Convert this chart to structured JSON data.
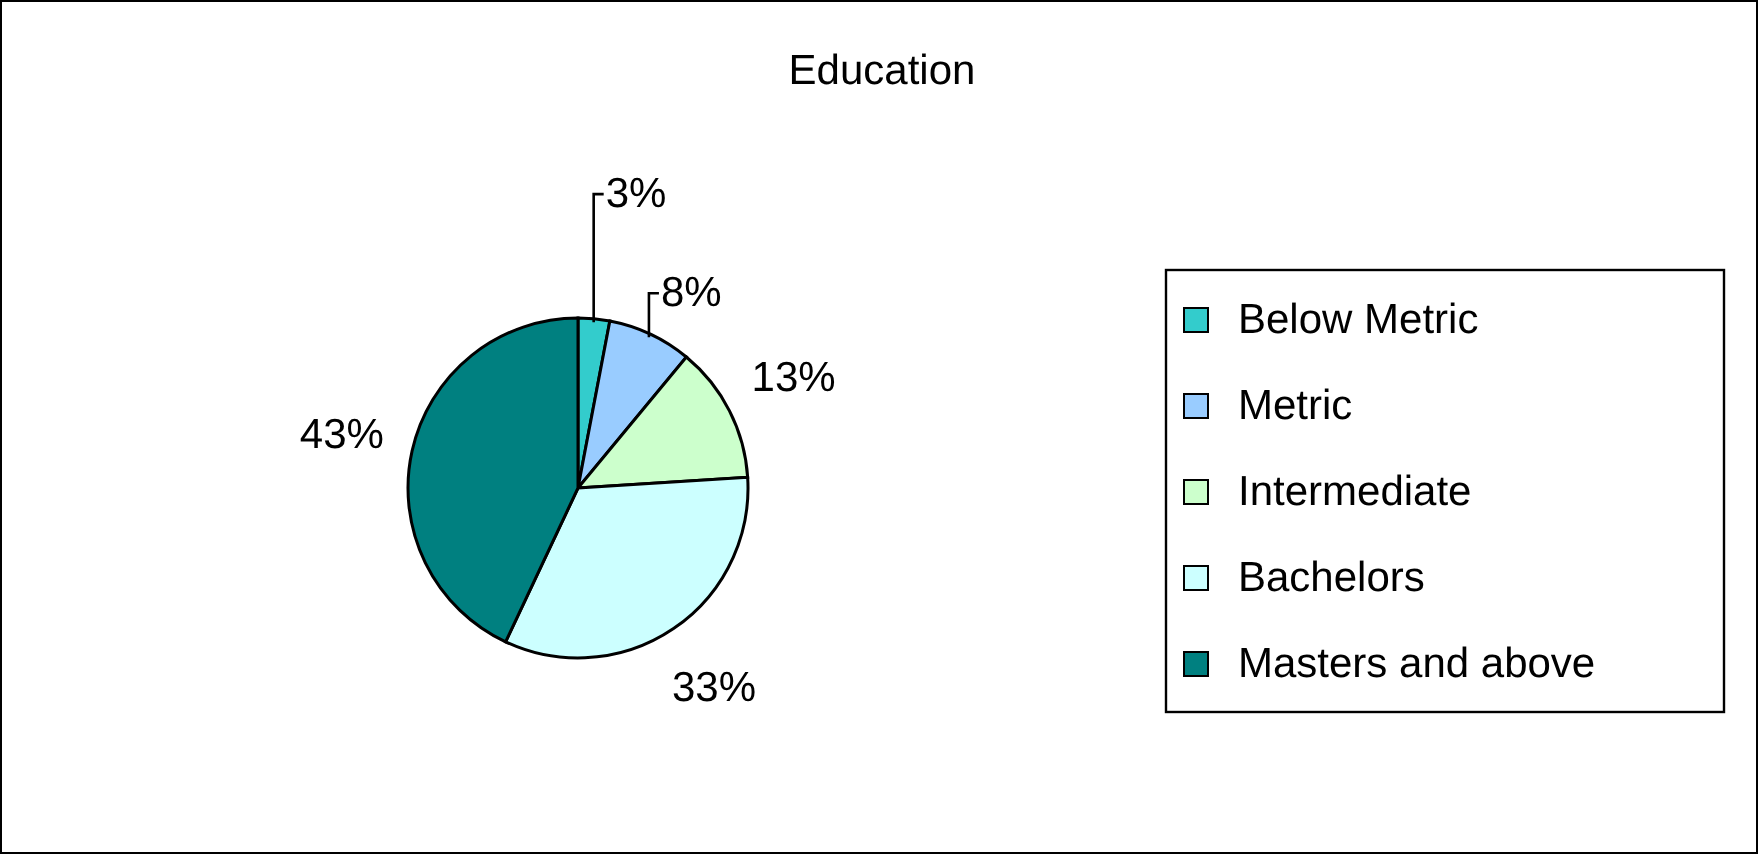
{
  "chart_data": {
    "type": "pie",
    "title": "Education",
    "categories": [
      "Below Metric",
      "Metric",
      "Intermediate",
      "Bachelors",
      "Masters and above"
    ],
    "values": [
      3,
      8,
      13,
      33,
      43
    ],
    "value_labels": [
      "3%",
      "8%",
      "13%",
      "33%",
      "43%"
    ],
    "colors": [
      "#33cccc",
      "#99ccff",
      "#ccffcc",
      "#ccffff",
      "#008080"
    ],
    "legend": "right"
  }
}
